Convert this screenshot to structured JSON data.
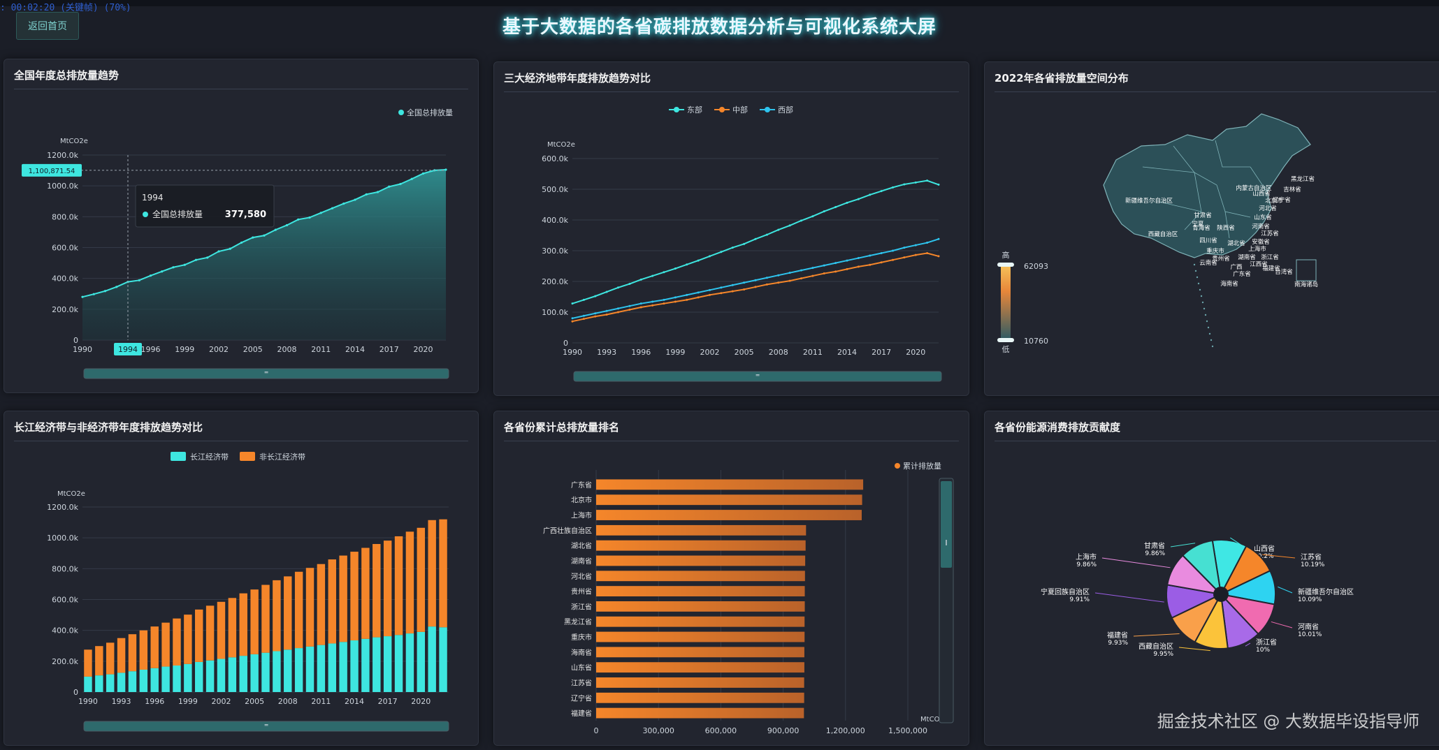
{
  "header": {
    "recording": ": 00:02:20 (关键帧) (70%)",
    "back_button": "返回首页",
    "title": "基于大数据的各省碳排放数据分析与可视化系统大屏"
  },
  "panels": {
    "p1": "全国年度总排放量趋势",
    "p2": "三大经济地带年度排放趋势对比",
    "p3": "2022年各省排放量空间分布",
    "p4": "长江经济带与非经济带年度排放趋势对比",
    "p5": "各省份累计总排放量排名",
    "p6": "各省份能源消费排放贡献度"
  },
  "watermark": "掘金技术社区 @ 大数据毕设指导师",
  "colors": {
    "cyan": "#3ee6e0",
    "orange": "#f5862a",
    "blue": "#2ec4ee",
    "teal_fill": "#2b6e72"
  },
  "chart_data": [
    {
      "type": "area",
      "title": "全国年度总排放量趋势",
      "ylabel": "MtCO2e",
      "legend": "全国总排放量",
      "x": [
        1990,
        1991,
        1992,
        1993,
        1994,
        1995,
        1996,
        1997,
        1998,
        1999,
        2000,
        2001,
        2002,
        2003,
        2004,
        2005,
        2006,
        2007,
        2008,
        2009,
        2010,
        2011,
        2012,
        2013,
        2014,
        2015,
        2016,
        2017,
        2018,
        2019,
        2020,
        2021,
        2022
      ],
      "values": [
        280000,
        298000,
        318000,
        345000,
        377580,
        388000,
        418000,
        445000,
        472000,
        488000,
        520000,
        535000,
        575000,
        592000,
        632000,
        665000,
        678000,
        715000,
        745000,
        782000,
        795000,
        825000,
        855000,
        885000,
        910000,
        945000,
        960000,
        995000,
        1012000,
        1045000,
        1080000,
        1100871.54,
        1105000
      ],
      "ylim": [
        0,
        1200000
      ],
      "yticks": [
        "0",
        "200.0k",
        "400.0k",
        "600.0k",
        "800.0k",
        "1000.0k",
        "1200.0k"
      ],
      "xticks": [
        "1990",
        "1994",
        "1996",
        "1999",
        "2002",
        "2005",
        "2008",
        "2011",
        "2014",
        "2017",
        "2020"
      ],
      "axis_pointer_label": "1,100,871.54",
      "x_pointer_label": "1994",
      "tooltip": {
        "year": "1994",
        "name": "全国总排放量",
        "value": "377,580"
      }
    },
    {
      "type": "line",
      "title": "三大经济地带年度排放趋势对比",
      "ylabel": "MtCO2e",
      "x": [
        1990,
        1991,
        1992,
        1993,
        1994,
        1995,
        1996,
        1997,
        1998,
        1999,
        2000,
        2001,
        2002,
        2003,
        2004,
        2005,
        2006,
        2007,
        2008,
        2009,
        2010,
        2011,
        2012,
        2013,
        2014,
        2015,
        2016,
        2017,
        2018,
        2019,
        2020,
        2021,
        2022
      ],
      "series": [
        {
          "name": "东部",
          "values": [
            128000,
            140000,
            152000,
            166000,
            180000,
            192000,
            206000,
            218000,
            230000,
            242000,
            255000,
            268000,
            282000,
            296000,
            310000,
            322000,
            338000,
            352000,
            368000,
            382000,
            398000,
            412000,
            428000,
            442000,
            456000,
            468000,
            482000,
            494000,
            506000,
            516000,
            522000,
            528000,
            515000
          ]
        },
        {
          "name": "中部",
          "values": [
            70000,
            78000,
            86000,
            92000,
            100000,
            108000,
            116000,
            122000,
            128000,
            134000,
            140000,
            148000,
            156000,
            162000,
            168000,
            174000,
            182000,
            190000,
            196000,
            202000,
            210000,
            218000,
            226000,
            232000,
            240000,
            248000,
            254000,
            262000,
            270000,
            278000,
            286000,
            292000,
            282000
          ]
        },
        {
          "name": "西部",
          "values": [
            80000,
            88000,
            96000,
            104000,
            112000,
            120000,
            128000,
            134000,
            140000,
            148000,
            156000,
            164000,
            172000,
            180000,
            188000,
            196000,
            204000,
            212000,
            220000,
            228000,
            236000,
            244000,
            252000,
            260000,
            268000,
            276000,
            284000,
            292000,
            300000,
            310000,
            318000,
            326000,
            338000
          ]
        }
      ],
      "ylim": [
        0,
        600000
      ],
      "yticks": [
        "0",
        "100.0k",
        "200.0k",
        "300.0k",
        "400.0k",
        "500.0k",
        "600.0k"
      ],
      "xticks": [
        "1990",
        "1993",
        "1996",
        "1999",
        "2002",
        "2005",
        "2008",
        "2011",
        "2014",
        "2017",
        "2020"
      ]
    },
    {
      "type": "map",
      "title": "2022年各省排放量空间分布",
      "visual_map": {
        "high_label": "高",
        "low_label": "低",
        "max": "62093",
        "min": "10760"
      },
      "province_labels": [
        "黑龙江省",
        "吉林省",
        "辽宁省",
        "内蒙古自治区",
        "新疆维吾尔自治区",
        "甘肃省",
        "宁夏",
        "山西省",
        "北京市",
        "河北省",
        "山东省",
        "青海省",
        "陕西省",
        "河南省",
        "江苏省",
        "西藏自治区",
        "四川省",
        "湖北省",
        "安徽省",
        "上海市",
        "重庆市",
        "湖南省",
        "浙江省",
        "江西省",
        "贵州省",
        "云南省",
        "福建省",
        "广西",
        "广东省",
        "台湾省",
        "海南省",
        "南海诸岛"
      ]
    },
    {
      "type": "bar",
      "stacked": true,
      "title": "长江经济带与非经济带年度排放趋势对比",
      "ylabel": "MtCO2e",
      "categories": [
        "1990",
        "1991",
        "1992",
        "1993",
        "1994",
        "1995",
        "1996",
        "1997",
        "1998",
        "1999",
        "2000",
        "2001",
        "2002",
        "2003",
        "2004",
        "2005",
        "2006",
        "2007",
        "2008",
        "2009",
        "2010",
        "2011",
        "2012",
        "2013",
        "2014",
        "2015",
        "2016",
        "2017",
        "2018",
        "2019",
        "2020",
        "2021",
        "2022"
      ],
      "series": [
        {
          "name": "长江经济带",
          "values": [
            100000,
            108000,
            115000,
            125000,
            135000,
            145000,
            155000,
            165000,
            172000,
            182000,
            195000,
            205000,
            215000,
            225000,
            235000,
            245000,
            255000,
            265000,
            275000,
            285000,
            295000,
            305000,
            315000,
            325000,
            335000,
            345000,
            355000,
            362000,
            370000,
            380000,
            390000,
            425000,
            420000
          ]
        },
        {
          "name": "非长江经济带",
          "values": [
            175000,
            190000,
            205000,
            225000,
            240000,
            255000,
            270000,
            285000,
            305000,
            320000,
            340000,
            355000,
            370000,
            385000,
            405000,
            420000,
            440000,
            460000,
            475000,
            495000,
            510000,
            525000,
            545000,
            560000,
            575000,
            590000,
            605000,
            620000,
            640000,
            660000,
            675000,
            690000,
            700000
          ]
        }
      ],
      "ylim": [
        0,
        1200000
      ],
      "yticks": [
        "0",
        "200.0k",
        "400.0k",
        "600.0k",
        "800.0k",
        "1000.0k",
        "1200.0k"
      ],
      "xticks": [
        "1990",
        "1993",
        "1996",
        "1999",
        "2002",
        "2005",
        "2008",
        "2011",
        "2014",
        "2017",
        "2020"
      ]
    },
    {
      "type": "bar",
      "orientation": "horizontal",
      "title": "各省份累计总排放量排名",
      "legend": "累计排放量",
      "xlabel": "MtCO2e",
      "categories": [
        "广东省",
        "北京市",
        "上海市",
        "广西壮族自治区",
        "湖北省",
        "湖南省",
        "河北省",
        "贵州省",
        "浙江省",
        "黑龙江省",
        "重庆市",
        "海南省",
        "山东省",
        "江苏省",
        "辽宁省",
        "福建省"
      ],
      "values": [
        1285000,
        1280000,
        1278000,
        1010000,
        1008000,
        1006000,
        1005000,
        1004000,
        1004000,
        1003000,
        1003000,
        1002000,
        1002000,
        1001000,
        1001000,
        1000000
      ],
      "xlim": [
        0,
        1500000
      ],
      "xticks": [
        "0",
        "300,000",
        "600,000",
        "900,000",
        "1,200,000",
        "1,500,000"
      ]
    },
    {
      "type": "pie",
      "title": "各省份能源消费排放贡献度",
      "slices": [
        {
          "name": "山西省",
          "value": "10.2%",
          "pct": 10.2,
          "color": "#3fe7e4"
        },
        {
          "name": "江苏省",
          "value": "10.19%",
          "pct": 10.19,
          "color": "#f5862a"
        },
        {
          "name": "新疆维吾尔自治区",
          "value": "10.09%",
          "pct": 10.09,
          "color": "#2ed3f1"
        },
        {
          "name": "河南省",
          "value": "10.01%",
          "pct": 10.01,
          "color": "#f06bb0"
        },
        {
          "name": "浙江省",
          "value": "10%",
          "pct": 10.0,
          "color": "#a86ae8"
        },
        {
          "name": "西藏自治区",
          "value": "9.95%",
          "pct": 9.95,
          "color": "#fbc33a"
        },
        {
          "name": "福建省",
          "value": "9.93%",
          "pct": 9.93,
          "color": "#f9a04a"
        },
        {
          "name": "宁夏回族自治区",
          "value": "9.91%",
          "pct": 9.91,
          "color": "#9b5de5"
        },
        {
          "name": "上海市",
          "value": "9.86%",
          "pct": 9.86,
          "color": "#e98bdf"
        },
        {
          "name": "甘肃省",
          "value": "9.86%",
          "pct": 9.86,
          "color": "#46e0d2"
        }
      ]
    }
  ]
}
